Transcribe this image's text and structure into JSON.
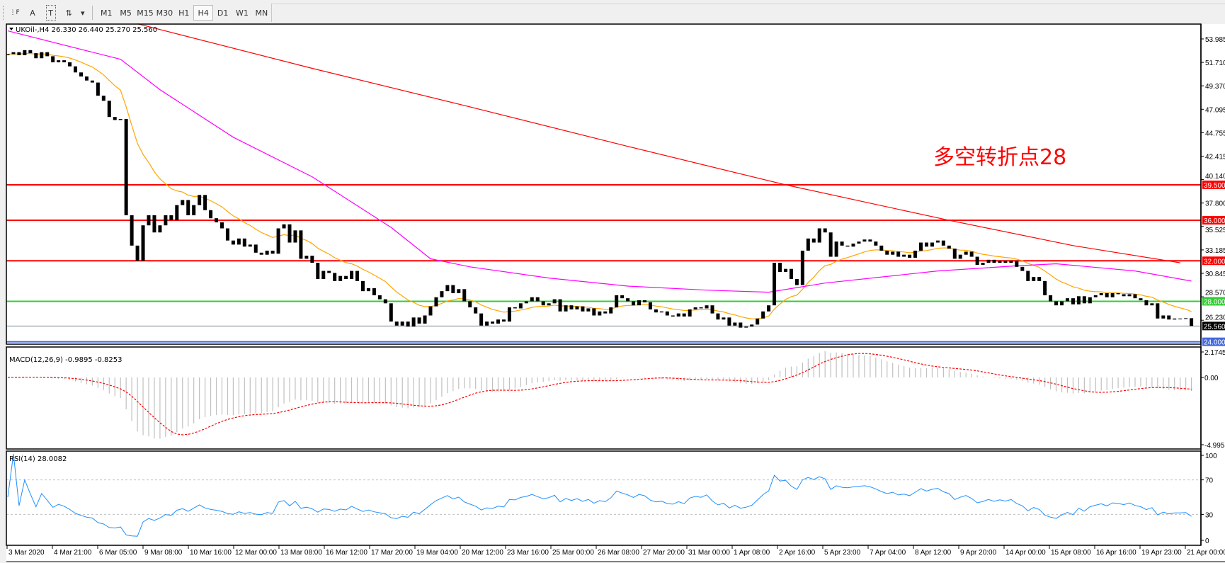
{
  "toolbar": {
    "tools": [
      {
        "name": "fibo-grid-icon",
        "glyph": "⋮F"
      },
      {
        "name": "text-icon",
        "glyph": "A"
      },
      {
        "name": "text-label-icon",
        "glyph": "T"
      },
      {
        "name": "arrows-icon",
        "glyph": "⇅"
      },
      {
        "name": "dropdown-icon",
        "glyph": "▾"
      }
    ],
    "timeframes": [
      "M1",
      "M5",
      "M15",
      "M30",
      "H1",
      "H4",
      "D1",
      "W1",
      "MN"
    ],
    "selected_timeframe": "H4"
  },
  "chart": {
    "header": "UKOil-,H4  26.330 26.440 25.270 25.560",
    "annotation": "多空转折点28",
    "annotation_color": "#ff0000",
    "up_color": "#ff0000",
    "down_color": "#00f080",
    "price_axis": [
      "53.985",
      "51.710",
      "49.370",
      "47.095",
      "44.755",
      "42.415",
      "40.140",
      "37.800",
      "35.525",
      "33.185",
      "30.845",
      "28.570",
      "26.230"
    ],
    "levels": [
      {
        "price": 39.5,
        "label": "39.500",
        "color": "#ff0000"
      },
      {
        "price": 36.0,
        "label": "36.000",
        "color": "#ff0000"
      },
      {
        "price": 32.0,
        "label": "32.000",
        "color": "#ff0000"
      },
      {
        "price": 28.0,
        "label": "28.000",
        "color": "#32cd32"
      },
      {
        "price": 24.0,
        "label": "24.000",
        "color": "#4169e1"
      }
    ],
    "current_price": {
      "price": 25.56,
      "label": "25.560",
      "color": "#000000",
      "line_color": "#778899"
    },
    "time_axis": [
      "3 Mar 2020",
      "4 Mar 21:00",
      "6 Mar 05:00",
      "9 Mar 08:00",
      "10 Mar 16:00",
      "12 Mar 00:00",
      "13 Mar 08:00",
      "16 Mar 12:00",
      "17 Mar 20:00",
      "19 Mar 04:00",
      "20 Mar 12:00",
      "23 Mar 16:00",
      "25 Mar 00:00",
      "26 Mar 08:00",
      "27 Mar 20:00",
      "31 Mar 00:00",
      "1 Apr 08:00",
      "2 Apr 16:00",
      "5 Apr 23:00",
      "7 Apr 04:00",
      "8 Apr 12:00",
      "9 Apr 20:00",
      "14 Apr 00:00",
      "15 Apr 08:00",
      "16 Apr 16:00",
      "19 Apr 23:00",
      "21 Apr 00:00"
    ]
  },
  "macd": {
    "label": "MACD(12,26,9) -0.9895 -0.8253",
    "axis": [
      "2.1745",
      "0.00",
      "-4.9955"
    ],
    "hist_color": "#c0c0c0",
    "signal_color": "#ff0000"
  },
  "rsi": {
    "label": "RSI(14) 28.0082",
    "axis": [
      "100",
      "70",
      "30",
      "0"
    ],
    "levels": [
      70,
      30
    ],
    "color": "#1e90ff"
  },
  "chart_data": {
    "type": "candlestick",
    "first_open": 52.3,
    "closes": [
      52.4,
      52.6,
      52.3,
      52.8,
      52.5,
      52.0,
      52.6,
      52.2,
      51.6,
      51.8,
      51.6,
      51.2,
      50.6,
      50.2,
      49.8,
      49.6,
      48.3,
      47.8,
      46.2,
      45.9,
      46.0,
      36.5,
      33.5,
      32.0,
      35.5,
      36.5,
      34.8,
      35.5,
      36.5,
      36.0,
      37.5,
      38.0,
      36.5,
      37.5,
      38.5,
      37.0,
      36.2,
      35.8,
      35.2,
      34.0,
      33.6,
      34.2,
      33.4,
      33.6,
      32.8,
      32.6,
      33.0,
      32.7,
      35.2,
      35.6,
      33.8,
      35.0,
      32.2,
      32.5,
      31.8,
      30.2,
      31.0,
      30.8,
      30.0,
      30.5,
      30.2,
      31.0,
      30.0,
      29.0,
      29.3,
      28.6,
      28.2,
      27.8,
      26.0,
      25.6,
      26.0,
      25.5,
      26.4,
      25.8,
      26.6,
      27.5,
      28.4,
      29.0,
      29.6,
      28.8,
      29.2,
      28.0,
      27.4,
      26.8,
      25.6,
      26.0,
      25.8,
      26.2,
      26.0,
      27.4,
      27.3,
      27.8,
      28.0,
      28.4,
      28.0,
      27.6,
      27.8,
      28.2,
      27.0,
      27.6,
      27.2,
      27.5,
      27.0,
      27.3,
      26.6,
      27.0,
      26.8,
      27.4,
      28.6,
      28.3,
      28.0,
      27.6,
      28.1,
      27.9,
      27.2,
      26.9,
      27.0,
      26.6,
      26.5,
      26.8,
      26.5,
      27.2,
      27.4,
      27.3,
      27.6,
      26.8,
      26.2,
      26.4,
      25.6,
      25.9,
      25.4,
      25.5,
      25.7,
      26.3,
      27.0,
      27.6,
      31.8,
      30.9,
      31.2,
      30.2,
      29.6,
      33.0,
      34.2,
      33.8,
      35.2,
      34.8,
      32.4,
      33.9,
      33.5,
      33.4,
      33.7,
      33.9,
      34.1,
      33.9,
      33.5,
      33.0,
      32.6,
      32.9,
      32.4,
      32.6,
      32.3,
      33.0,
      33.8,
      33.4,
      33.8,
      34.0,
      33.5,
      33.2,
      32.2,
      32.6,
      32.9,
      32.4,
      31.6,
      31.8,
      32.1,
      31.8,
      32.0,
      31.8,
      32.0,
      31.4,
      31.0,
      30.0,
      30.4,
      30.0,
      28.6,
      28.0,
      27.6,
      28.0,
      28.3,
      27.7,
      28.5,
      27.8,
      28.4,
      28.6,
      28.8,
      28.4,
      28.8,
      28.7,
      28.5,
      28.7,
      28.3,
      28.1,
      27.6,
      27.8,
      26.3,
      26.6,
      26.2,
      26.3,
      26.3,
      26.33,
      25.56
    ],
    "wick_highs": [
      {
        "bar": 34,
        "high": 39.3
      },
      {
        "bar": 48,
        "high": 36.1
      },
      {
        "bar": 136,
        "high": 36.0
      },
      {
        "bar": 165,
        "high": 36.2
      },
      {
        "bar": 210,
        "high": 26.44
      }
    ],
    "wick_lows": [
      {
        "bar": 22,
        "low": 31.2
      },
      {
        "bar": 210,
        "low": 25.27
      }
    ],
    "moving_averages": [
      {
        "color": "#ffa500",
        "source": "close"
      },
      {
        "color": "#ff00ff",
        "points": [
          [
            0,
            54.7
          ],
          [
            20,
            51.9
          ],
          [
            27,
            48.9
          ],
          [
            40,
            44.2
          ],
          [
            54,
            40.3
          ],
          [
            68,
            35.3
          ],
          [
            75,
            32.2
          ],
          [
            82,
            31.4
          ],
          [
            96,
            30.3
          ],
          [
            110,
            29.5
          ],
          [
            124,
            29.1
          ],
          [
            135,
            28.9
          ],
          [
            145,
            29.8
          ],
          [
            165,
            31.0
          ],
          [
            179,
            31.5
          ],
          [
            186,
            31.7
          ],
          [
            200,
            31.0
          ],
          [
            210,
            30.0
          ]
        ]
      },
      {
        "color": "#ff0000",
        "points": [
          [
            23,
            55.4
          ],
          [
            54,
            51.0
          ],
          [
            82,
            47.2
          ],
          [
            110,
            43.3
          ],
          [
            138,
            39.5
          ],
          [
            167,
            36.0
          ],
          [
            189,
            33.5
          ],
          [
            208,
            31.8
          ]
        ]
      }
    ]
  }
}
